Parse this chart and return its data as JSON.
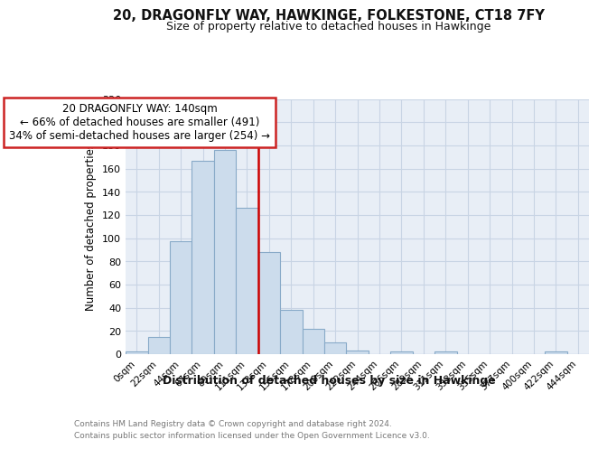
{
  "title": "20, DRAGONFLY WAY, HAWKINGE, FOLKESTONE, CT18 7FY",
  "subtitle": "Size of property relative to detached houses in Hawkinge",
  "xlabel": "Distribution of detached houses by size in Hawkinge",
  "ylabel": "Number of detached properties",
  "categories": [
    "0sqm",
    "22sqm",
    "44sqm",
    "67sqm",
    "89sqm",
    "111sqm",
    "133sqm",
    "155sqm",
    "178sqm",
    "200sqm",
    "222sqm",
    "244sqm",
    "266sqm",
    "289sqm",
    "311sqm",
    "333sqm",
    "355sqm",
    "377sqm",
    "400sqm",
    "422sqm",
    "444sqm"
  ],
  "values": [
    2,
    15,
    97,
    167,
    176,
    126,
    88,
    38,
    22,
    10,
    3,
    0,
    2,
    0,
    2,
    0,
    0,
    0,
    0,
    2,
    0
  ],
  "bar_color": "#ccdcec",
  "bar_edge_color": "#88aac8",
  "red_line_color": "#cc0000",
  "annotation_line1": "20 DRAGONFLY WAY: 140sqm",
  "annotation_line2": "← 66% of detached houses are smaller (491)",
  "annotation_line3": "34% of semi-detached houses are larger (254) →",
  "annotation_box_facecolor": "#ffffff",
  "annotation_box_edgecolor": "#cc2222",
  "grid_color": "#c8d4e4",
  "background_color": "#e8eef6",
  "footer_line1": "Contains HM Land Registry data © Crown copyright and database right 2024.",
  "footer_line2": "Contains public sector information licensed under the Open Government Licence v3.0.",
  "ylim": [
    0,
    220
  ],
  "yticks": [
    0,
    20,
    40,
    60,
    80,
    100,
    120,
    140,
    160,
    180,
    200,
    220
  ],
  "red_line_index": 6
}
